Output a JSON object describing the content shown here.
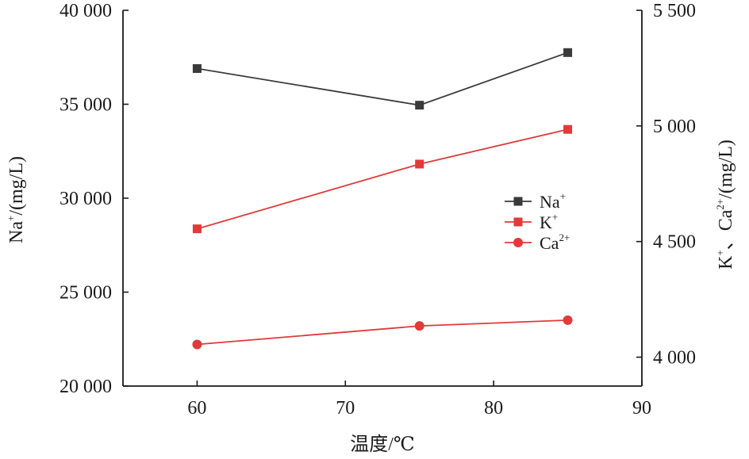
{
  "chart_data": {
    "type": "line",
    "title": "",
    "xlabel": "温度/℃",
    "ylabel_left": {
      "base": "Na",
      "sup": "+",
      "rest": "/(mg/L)"
    },
    "ylabel_right": {
      "k_base": "K",
      "k_sup": "+",
      "sep": "、",
      "ca_base": "Ca",
      "ca_sup": "2+",
      "rest": "/(mg/L)"
    },
    "xlim": [
      55,
      90
    ],
    "ylim_left": [
      20000,
      40000
    ],
    "ylim_right": [
      3875,
      5500
    ],
    "x_ticks": [
      60,
      70,
      80,
      90
    ],
    "x_tick_labels": [
      "60",
      "70",
      "80",
      "90"
    ],
    "y_left_ticks": [
      20000,
      25000,
      30000,
      35000,
      40000
    ],
    "y_left_tick_labels": [
      "20 000",
      "25 000",
      "30 000",
      "35 000",
      "40 000"
    ],
    "y_right_ticks": [
      4000,
      4500,
      5000,
      5500
    ],
    "y_right_tick_labels": [
      "4 000",
      "4 500",
      "5 000",
      "5 500"
    ],
    "grid": false,
    "legend_position": "center-right",
    "series": [
      {
        "name": "Na",
        "sup": "+",
        "axis": "left",
        "marker": "square",
        "color": "#3a3a3a",
        "x": [
          60,
          75,
          85
        ],
        "values": [
          36900,
          34950,
          37750
        ]
      },
      {
        "name": "K",
        "sup": "+",
        "axis": "right",
        "marker": "square",
        "color": "#e03a3a",
        "x": [
          60,
          75,
          85
        ],
        "values": [
          4555,
          4835,
          4985
        ]
      },
      {
        "name": "Ca",
        "sup": "2+",
        "axis": "right",
        "marker": "circle",
        "color": "#e03a3a",
        "x": [
          60,
          75,
          85
        ],
        "values": [
          4055,
          4135,
          4160
        ]
      }
    ]
  }
}
